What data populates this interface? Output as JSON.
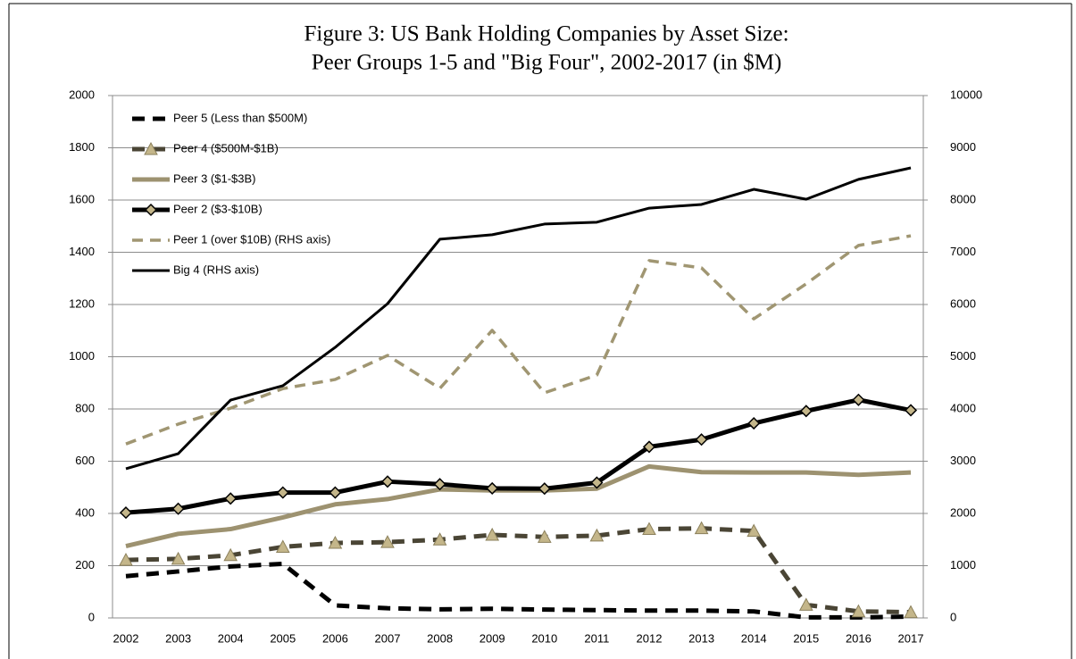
{
  "chart_data": {
    "type": "line",
    "title": [
      "Figure 3: US Bank Holding Companies by Asset Size:",
      "Peer Groups 1-5 and \"Big Four\", 2002-2017 (in $M)"
    ],
    "categories": [
      "2002",
      "2003",
      "2004",
      "2005",
      "2006",
      "2007",
      "2008",
      "2009",
      "2010",
      "2011",
      "2012",
      "2013",
      "2014",
      "2015",
      "2016",
      "2017"
    ],
    "ylim": [
      0,
      2000
    ],
    "yticks": [
      0,
      200,
      400,
      600,
      800,
      1000,
      1200,
      1400,
      1600,
      1800,
      2000
    ],
    "y2lim": [
      0,
      10000
    ],
    "y2ticks": [
      0,
      1000,
      2000,
      3000,
      4000,
      5000,
      6000,
      7000,
      8000,
      9000,
      10000
    ],
    "grid": true,
    "legend": "upper left",
    "series": [
      {
        "name": "Peer 5 (Less than $500M)",
        "color": "#000000",
        "line_style": "dashed",
        "line_weight": "heavy",
        "marker": "none",
        "values": [
          160,
          178,
          197,
          207,
          48,
          37,
          33,
          35,
          32,
          30,
          28,
          28,
          25,
          2,
          2,
          5
        ]
      },
      {
        "name": "Peer 4 ($500M-$1B)",
        "color": "#4a4535",
        "line_style": "dashed",
        "line_weight": "heavy",
        "marker": "triangle",
        "marker_color": "#c4b68a",
        "values": [
          222,
          226,
          240,
          272,
          287,
          290,
          300,
          318,
          310,
          315,
          340,
          343,
          333,
          50,
          25,
          22
        ]
      },
      {
        "name": "Peer 3 ($1-$3B)",
        "color": "#9d9270",
        "line_style": "solid",
        "line_weight": "heavy",
        "marker": "none",
        "values": [
          275,
          322,
          340,
          385,
          435,
          455,
          492,
          488,
          488,
          495,
          580,
          558,
          557,
          557,
          548,
          557
        ]
      },
      {
        "name": "Peer 2 ($3-$10B)",
        "color": "#000000",
        "line_style": "solid",
        "line_weight": "heavy",
        "marker": "diamond",
        "marker_color": "#c4b68a",
        "values": [
          403,
          418,
          457,
          480,
          480,
          522,
          512,
          496,
          495,
          518,
          655,
          683,
          745,
          792,
          835,
          795
        ]
      },
      {
        "name": "Peer 1 (over $10B) (RHS axis)",
        "color": "#a09672",
        "line_style": "dashed",
        "line_weight": "medium",
        "marker": "none",
        "axis": "y2",
        "values": [
          3330,
          3710,
          4015,
          4390,
          4565,
          5025,
          4395,
          5505,
          4310,
          4650,
          6840,
          6700,
          5725,
          6395,
          7130,
          7315
        ]
      },
      {
        "name": "Big 4 (RHS axis)",
        "color": "#000000",
        "line_style": "solid",
        "line_weight": "light",
        "marker": "none",
        "axis": "y2",
        "values": [
          2855,
          3145,
          4170,
          4445,
          5180,
          6015,
          7250,
          7335,
          7540,
          7575,
          7845,
          7915,
          8205,
          8015,
          8395,
          8615
        ]
      }
    ]
  }
}
